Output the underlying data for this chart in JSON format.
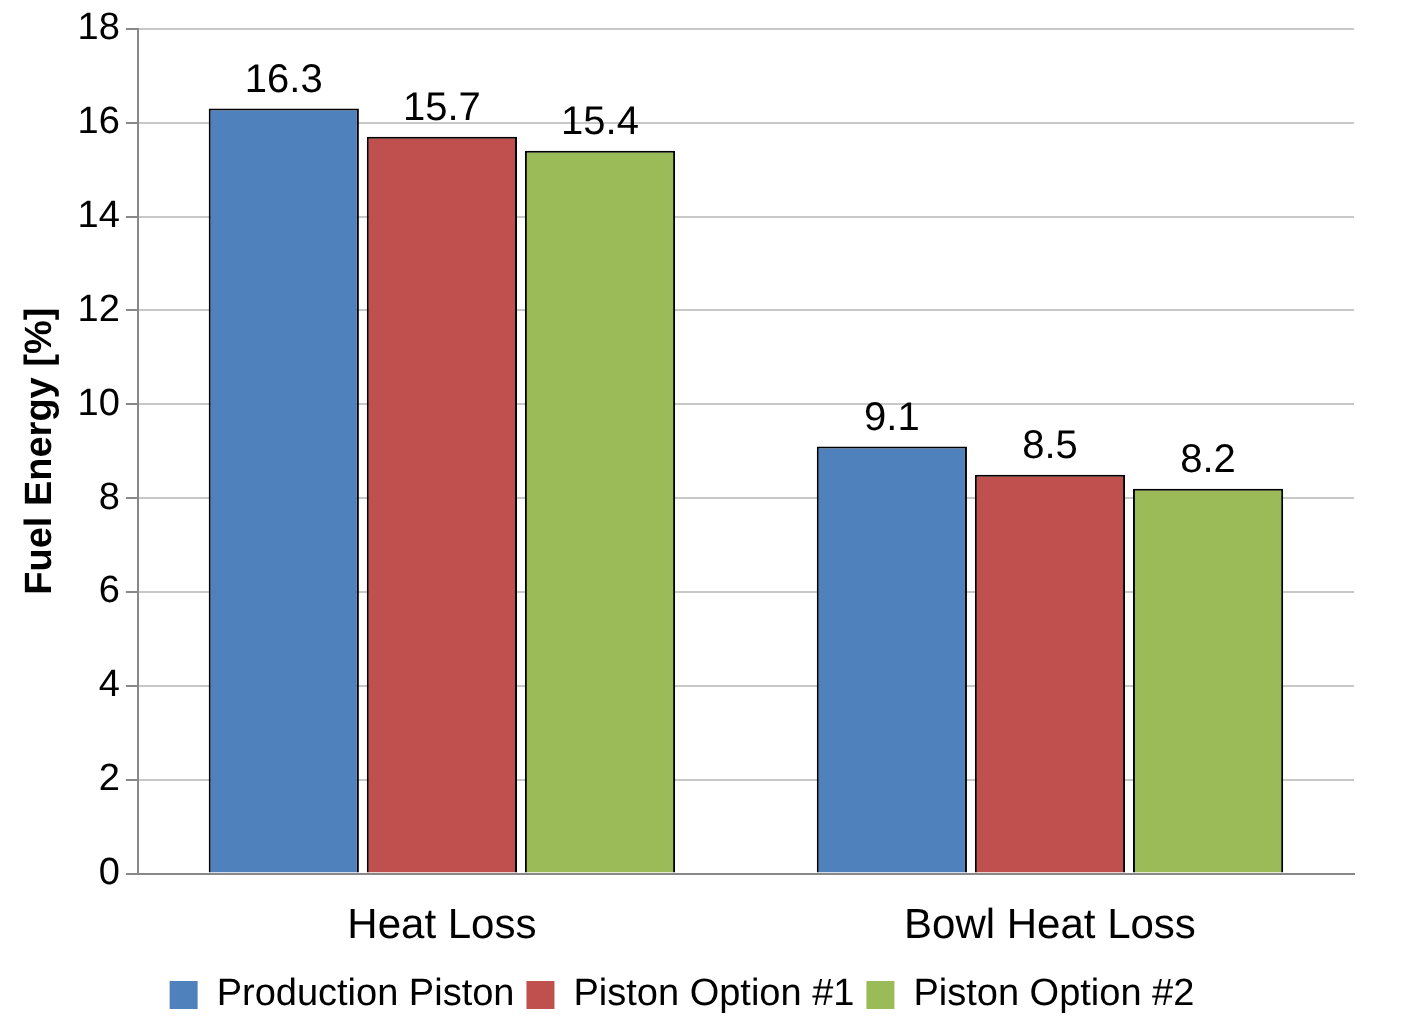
{
  "chart_data": {
    "type": "bar",
    "ylabel": "Fuel Energy [%]",
    "categories": [
      "Heat Loss",
      "Bowl Heat Loss"
    ],
    "series": [
      {
        "name": "Production Piston",
        "color": "#4f81bd",
        "values": [
          16.3,
          9.1
        ]
      },
      {
        "name": "Piston Option #1",
        "color": "#c0504d",
        "values": [
          15.7,
          8.5
        ]
      },
      {
        "name": "Piston Option #2",
        "color": "#9bbb59",
        "values": [
          15.4,
          8.2
        ]
      }
    ],
    "ylim": [
      0,
      18
    ],
    "yticks": [
      0,
      2,
      4,
      6,
      8,
      10,
      12,
      14,
      16,
      18
    ],
    "grid": "y",
    "legend": "bottom",
    "data_labels": true
  }
}
